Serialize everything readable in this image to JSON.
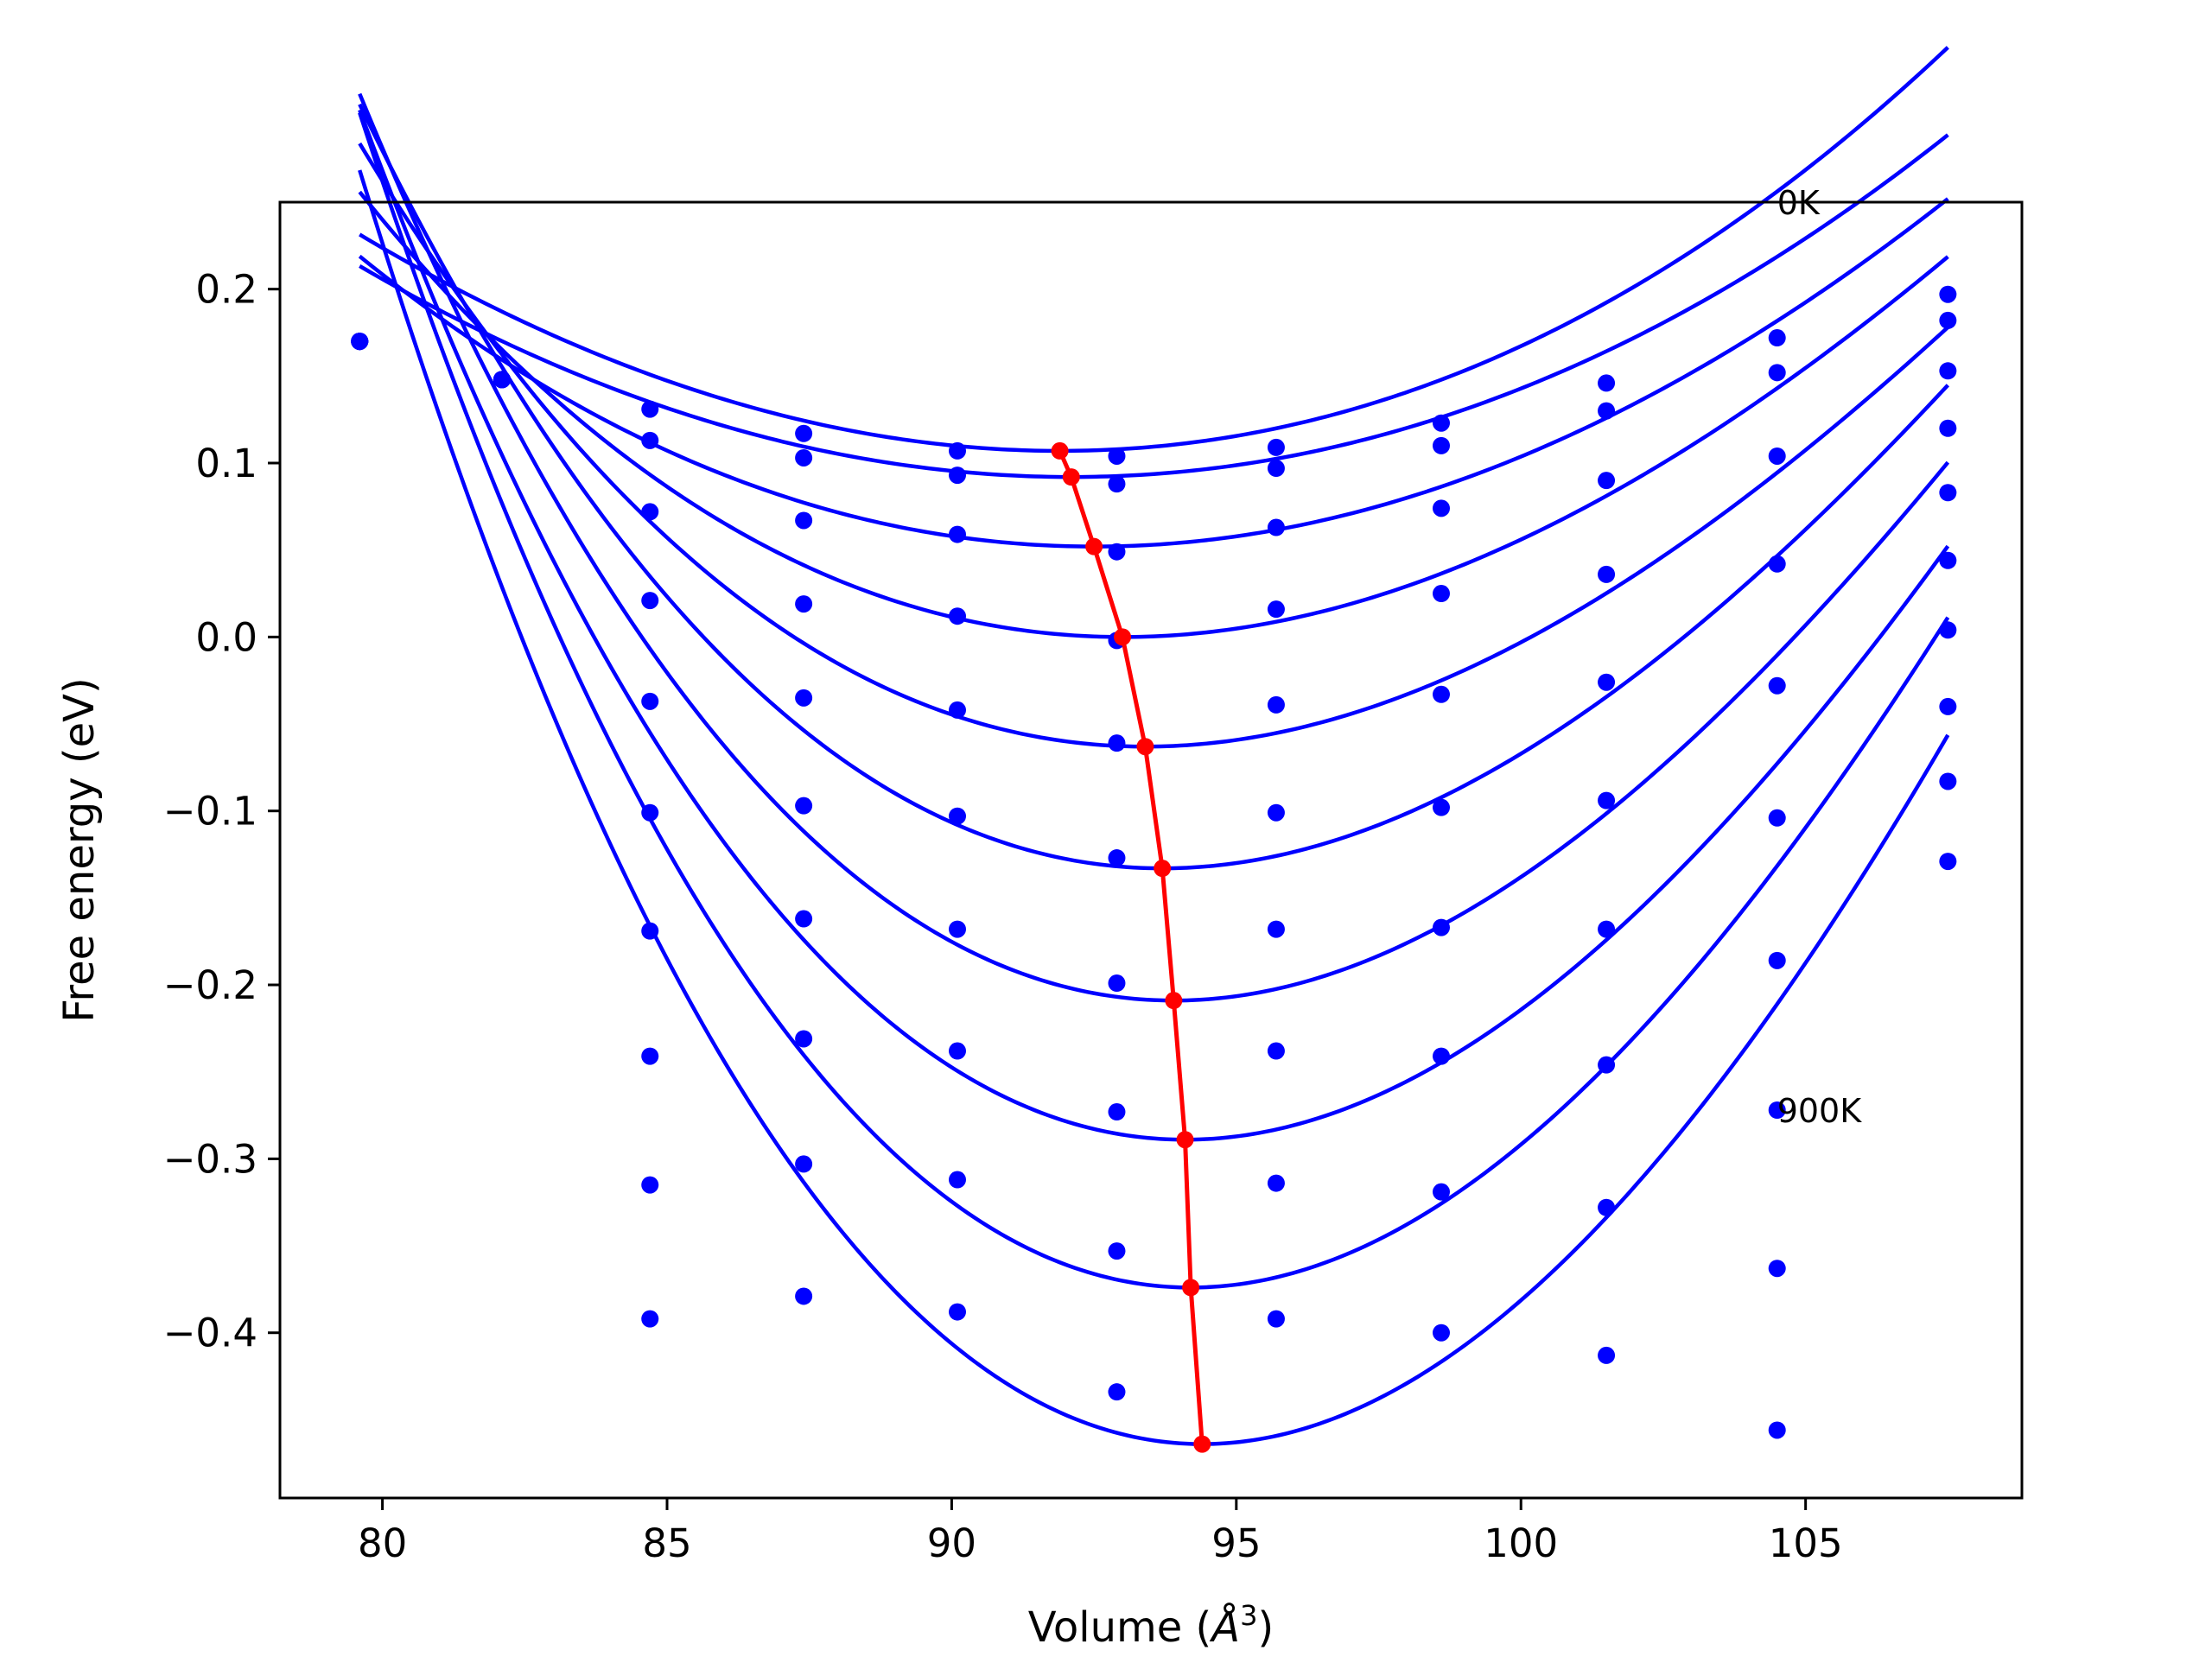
{
  "chart_data": {
    "type": "scatter",
    "xlabel_main": "Volume (",
    "xlabel_unit": "Å",
    "xlabel_exp": "3",
    "xlabel_close": ")",
    "ylabel": "Free energy (eV)",
    "xlim": [
      78.2,
      108.8
    ],
    "ylim": [
      -0.495,
      0.25
    ],
    "x_ticks": [
      80,
      85,
      90,
      95,
      100,
      105
    ],
    "y_ticks": [
      0.2,
      0.1,
      0.0,
      -0.1,
      -0.2,
      -0.3,
      -0.4
    ],
    "x_tick_labels": [
      "80",
      "85",
      "90",
      "95",
      "100",
      "105"
    ],
    "y_tick_labels": [
      "0.2",
      "0.1",
      "0.0",
      "−0.1",
      "−0.2",
      "−0.3",
      "−0.4"
    ],
    "annotations": [
      {
        "text": "0K",
        "x": 104.5,
        "y": 0.25
      },
      {
        "text": "900K",
        "x": 104.5,
        "y": -0.272
      }
    ],
    "colors": {
      "fit": "#0000ff",
      "points": "#0000ff",
      "equilibrium": "#ff0000",
      "axes": "#000000"
    },
    "x_points": [
      79.6,
      82.1,
      84.7,
      87.4,
      90.1,
      92.9,
      95.7,
      98.6,
      101.5,
      104.5,
      107.5
    ],
    "series": [
      {
        "values": [
          0.17,
          0.148,
          0.131,
          0.117,
          0.107,
          0.104,
          0.109,
          0.123,
          0.146,
          0.172,
          0.197
        ],
        "fit": {
          "x0": 91.9,
          "e0": 0.107,
          "k": 0.00088,
          "c": 4.7e-06
        }
      },
      {
        "values": [
          0.17,
          0.148,
          0.113,
          0.103,
          0.093,
          0.088,
          0.097,
          0.11,
          0.13,
          0.152,
          0.182
        ],
        "fit": {
          "x0": 92.1,
          "e0": 0.092,
          "k": 0.0008,
          "c": 1.9e-06
        }
      },
      {
        "values": [
          0.17,
          0.148,
          0.072,
          0.067,
          0.059,
          0.049,
          0.063,
          0.074,
          0.09,
          0.104,
          0.153
        ],
        "fit": {
          "x0": 92.5,
          "e0": 0.052,
          "k": 0.00095,
          "c": -4.1e-06
        }
      },
      {
        "values": [
          0.17,
          0.148,
          0.021,
          0.019,
          0.012,
          -0.002,
          0.016,
          0.025,
          0.036,
          0.042,
          0.12
        ],
        "fit": {
          "x0": 93.0,
          "e0": 0.0,
          "k": 0.00124,
          "c": -1.38e-05
        }
      },
      {
        "values": [
          0.17,
          0.148,
          -0.037,
          -0.035,
          -0.042,
          -0.061,
          -0.039,
          -0.033,
          -0.026,
          -0.028,
          0.083
        ],
        "fit": {
          "x0": 93.4,
          "e0": -0.063,
          "k": 0.00152,
          "c": -2.18e-05
        }
      },
      {
        "values": [
          0.17,
          0.148,
          -0.101,
          -0.097,
          -0.103,
          -0.127,
          -0.101,
          -0.098,
          -0.094,
          -0.104,
          0.044
        ],
        "fit": {
          "x0": 93.7,
          "e0": -0.133,
          "k": 0.00183,
          "c": -2.69e-05
        }
      },
      {
        "values": [
          0.17,
          0.148,
          -0.169,
          -0.162,
          -0.168,
          -0.199,
          -0.168,
          -0.167,
          -0.168,
          -0.186,
          0.004
        ],
        "fit": {
          "x0": 93.9,
          "e0": -0.209,
          "k": 0.0021,
          "c": -3.14e-05
        }
      },
      {
        "values": [
          0.17,
          0.148,
          -0.241,
          -0.231,
          -0.238,
          -0.273,
          -0.238,
          -0.241,
          -0.246,
          -0.272,
          -0.04
        ],
        "fit": {
          "x0": 94.1,
          "e0": -0.289,
          "k": 0.00234,
          "c": -3.28e-05
        }
      },
      {
        "values": [
          0.17,
          0.148,
          -0.315,
          -0.303,
          -0.312,
          -0.353,
          -0.314,
          -0.319,
          -0.328,
          -0.363,
          -0.083
        ],
        "fit": {
          "x0": 94.2,
          "e0": -0.374,
          "k": 0.00265,
          "c": -3.55e-05
        }
      },
      {
        "values": [
          0.17,
          0.148,
          -0.392,
          -0.379,
          -0.388,
          -0.434,
          -0.392,
          -0.4,
          -0.413,
          -0.456,
          -0.129
        ],
        "fit": {
          "x0": 94.4,
          "e0": -0.464,
          "k": 0.00283,
          "c": -3.47e-05
        }
      }
    ],
    "fit_range": [
      79.6,
      107.5
    ],
    "equilibrium": {
      "x": [
        91.9,
        92.1,
        92.5,
        93.0,
        93.4,
        93.7,
        93.9,
        94.1,
        94.2,
        94.4
      ],
      "y": [
        0.107,
        0.092,
        0.052,
        0.0,
        -0.063,
        -0.133,
        -0.209,
        -0.289,
        -0.374,
        -0.464
      ]
    }
  }
}
